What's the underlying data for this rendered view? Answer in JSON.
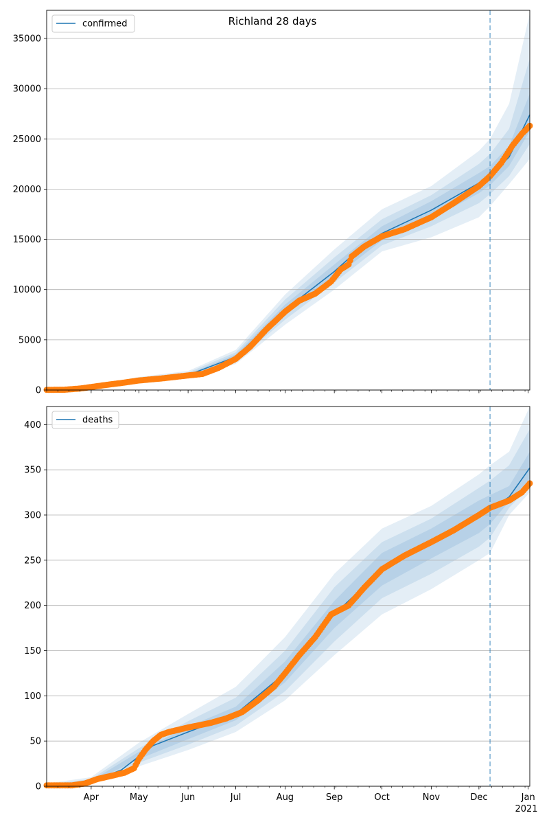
{
  "figure": {
    "title": "Richland 28 days",
    "x_tick_labels": [
      "Apr",
      "May",
      "Jun",
      "Jul",
      "Aug",
      "Sep",
      "Oct",
      "Nov",
      "Dec",
      "Jan"
    ],
    "x_year_label": "2021"
  },
  "colors": {
    "model": "#1f77b4",
    "observed": "#ff7f0e",
    "band": "#1f77b4",
    "grid": "#b0b0b0",
    "forecast_line": "#1f77b4"
  },
  "chart_data": [
    {
      "type": "line",
      "legend": "confirmed",
      "legend_position": "upper-left",
      "grid": "horizontal",
      "x_range": [
        "2020-03-04",
        "2021-01-02"
      ],
      "forecast_start": "2020-12-08",
      "ylim": [
        0,
        37800
      ],
      "y_ticks": [
        0,
        5000,
        10000,
        15000,
        20000,
        25000,
        30000,
        35000
      ],
      "observed": [
        [
          "2020-03-04",
          20
        ],
        [
          "2020-03-15",
          30
        ],
        [
          "2020-03-25",
          150
        ],
        [
          "2020-04-01",
          300
        ],
        [
          "2020-04-10",
          500
        ],
        [
          "2020-04-20",
          700
        ],
        [
          "2020-05-01",
          950
        ],
        [
          "2020-05-15",
          1150
        ],
        [
          "2020-06-01",
          1450
        ],
        [
          "2020-06-10",
          1600
        ],
        [
          "2020-06-20",
          2200
        ],
        [
          "2020-07-01",
          3100
        ],
        [
          "2020-07-10",
          4300
        ],
        [
          "2020-07-20",
          6000
        ],
        [
          "2020-08-01",
          7800
        ],
        [
          "2020-08-10",
          8900
        ],
        [
          "2020-08-20",
          9600
        ],
        [
          "2020-08-30",
          10800
        ],
        [
          "2020-09-05",
          12000
        ],
        [
          "2020-09-10",
          12500
        ],
        [
          "2020-09-12",
          13300
        ],
        [
          "2020-09-20",
          14300
        ],
        [
          "2020-10-01",
          15300
        ],
        [
          "2020-10-15",
          16000
        ],
        [
          "2020-11-01",
          17200
        ],
        [
          "2020-11-15",
          18600
        ],
        [
          "2020-12-01",
          20300
        ],
        [
          "2020-12-08",
          21300
        ],
        [
          "2020-12-15",
          22600
        ],
        [
          "2020-12-22",
          24300
        ],
        [
          "2020-12-28",
          25500
        ],
        [
          "2021-01-02",
          26300
        ]
      ],
      "model": [
        [
          "2020-03-04",
          20
        ],
        [
          "2020-04-01",
          300
        ],
        [
          "2020-05-01",
          1000
        ],
        [
          "2020-06-01",
          1500
        ],
        [
          "2020-07-01",
          3300
        ],
        [
          "2020-08-01",
          8000
        ],
        [
          "2020-09-01",
          11800
        ],
        [
          "2020-09-20",
          14500
        ],
        [
          "2020-10-01",
          15600
        ],
        [
          "2020-11-01",
          17900
        ],
        [
          "2020-12-01",
          20600
        ],
        [
          "2020-12-08",
          21300
        ],
        [
          "2020-12-20",
          23200
        ],
        [
          "2021-01-02",
          27400
        ]
      ],
      "bands": [
        {
          "x": [
            "2020-03-04",
            "2020-04-01",
            "2020-05-01",
            "2020-06-01",
            "2020-07-01",
            "2020-08-01",
            "2020-09-01",
            "2020-10-01",
            "2020-11-01",
            "2020-12-01",
            "2020-12-08",
            "2020-12-20",
            "2021-01-02"
          ],
          "low": [
            0,
            200,
            750,
            1200,
            2600,
            6500,
            10000,
            13800,
            15200,
            17200,
            18300,
            20500,
            23000
          ],
          "high": [
            60,
            420,
            1300,
            1900,
            4000,
            9500,
            14000,
            18000,
            20300,
            23800,
            25000,
            28500,
            37500
          ]
        },
        {
          "x": [
            "2020-03-04",
            "2020-04-01",
            "2020-05-01",
            "2020-06-01",
            "2020-07-01",
            "2020-08-01",
            "2020-09-01",
            "2020-10-01",
            "2020-11-01",
            "2020-12-01",
            "2020-12-08",
            "2020-12-20",
            "2021-01-02"
          ],
          "low": [
            0,
            240,
            820,
            1300,
            2800,
            7000,
            10700,
            14400,
            16300,
            18600,
            19500,
            21300,
            24500
          ],
          "high": [
            45,
            370,
            1200,
            1750,
            3750,
            9000,
            13200,
            17000,
            19400,
            22500,
            23500,
            26000,
            33000
          ]
        },
        {
          "x": [
            "2020-03-04",
            "2020-04-01",
            "2020-05-01",
            "2020-06-01",
            "2020-07-01",
            "2020-08-01",
            "2020-09-01",
            "2020-10-01",
            "2020-11-01",
            "2020-12-01",
            "2020-12-08",
            "2020-12-20",
            "2021-01-02"
          ],
          "low": [
            5,
            270,
            900,
            1400,
            3000,
            7500,
            11200,
            14900,
            17000,
            19600,
            20400,
            22300,
            25800
          ],
          "high": [
            35,
            330,
            1100,
            1600,
            3550,
            8500,
            12500,
            16300,
            18800,
            21600,
            22300,
            24300,
            29500
          ]
        }
      ]
    },
    {
      "type": "line",
      "legend": "deaths",
      "legend_position": "upper-left",
      "grid": "horizontal",
      "x_range": [
        "2020-03-04",
        "2021-01-02"
      ],
      "forecast_start": "2020-12-08",
      "ylim": [
        0,
        420
      ],
      "y_ticks": [
        0,
        50,
        100,
        150,
        200,
        250,
        300,
        350,
        400
      ],
      "observed": [
        [
          "2020-03-04",
          1
        ],
        [
          "2020-03-20",
          1
        ],
        [
          "2020-03-28",
          3
        ],
        [
          "2020-04-05",
          8
        ],
        [
          "2020-04-15",
          12
        ],
        [
          "2020-04-22",
          15
        ],
        [
          "2020-04-28",
          20
        ],
        [
          "2020-05-01",
          30
        ],
        [
          "2020-05-05",
          40
        ],
        [
          "2020-05-10",
          50
        ],
        [
          "2020-05-15",
          57
        ],
        [
          "2020-05-20",
          60
        ],
        [
          "2020-06-01",
          65
        ],
        [
          "2020-06-15",
          70
        ],
        [
          "2020-06-25",
          75
        ],
        [
          "2020-07-05",
          82
        ],
        [
          "2020-07-15",
          95
        ],
        [
          "2020-07-25",
          110
        ],
        [
          "2020-08-01",
          125
        ],
        [
          "2020-08-10",
          145
        ],
        [
          "2020-08-20",
          165
        ],
        [
          "2020-08-30",
          190
        ],
        [
          "2020-09-10",
          200
        ],
        [
          "2020-09-20",
          220
        ],
        [
          "2020-10-01",
          240
        ],
        [
          "2020-10-15",
          255
        ],
        [
          "2020-11-01",
          270
        ],
        [
          "2020-11-15",
          283
        ],
        [
          "2020-12-01",
          300
        ],
        [
          "2020-12-08",
          308
        ],
        [
          "2020-12-20",
          316
        ],
        [
          "2020-12-28",
          325
        ],
        [
          "2021-01-02",
          335
        ]
      ],
      "model": [
        [
          "2020-03-04",
          1
        ],
        [
          "2020-04-01",
          5
        ],
        [
          "2020-04-20",
          18
        ],
        [
          "2020-05-10",
          45
        ],
        [
          "2020-06-01",
          60
        ],
        [
          "2020-07-01",
          80
        ],
        [
          "2020-08-01",
          125
        ],
        [
          "2020-09-01",
          190
        ],
        [
          "2020-10-01",
          240
        ],
        [
          "2020-11-01",
          270
        ],
        [
          "2020-12-01",
          298
        ],
        [
          "2020-12-08",
          306
        ],
        [
          "2020-12-20",
          320
        ],
        [
          "2021-01-02",
          352
        ]
      ],
      "bands": [
        {
          "x": [
            "2020-03-04",
            "2020-04-01",
            "2020-05-01",
            "2020-06-01",
            "2020-07-01",
            "2020-08-01",
            "2020-09-01",
            "2020-10-01",
            "2020-11-01",
            "2020-12-01",
            "2020-12-08",
            "2020-12-20",
            "2021-01-02"
          ],
          "low": [
            0,
            2,
            22,
            40,
            60,
            95,
            145,
            190,
            218,
            250,
            258,
            300,
            325
          ],
          "high": [
            3,
            10,
            48,
            80,
            110,
            165,
            235,
            285,
            310,
            345,
            355,
            370,
            420
          ]
        },
        {
          "x": [
            "2020-03-04",
            "2020-04-01",
            "2020-05-01",
            "2020-06-01",
            "2020-07-01",
            "2020-08-01",
            "2020-09-01",
            "2020-10-01",
            "2020-11-01",
            "2020-12-01",
            "2020-12-08",
            "2020-12-20",
            "2021-01-02"
          ],
          "low": [
            0,
            3,
            26,
            46,
            67,
            105,
            160,
            208,
            235,
            265,
            275,
            308,
            332
          ],
          "high": [
            2,
            8,
            42,
            72,
            98,
            150,
            220,
            270,
            296,
            330,
            338,
            355,
            395
          ]
        },
        {
          "x": [
            "2020-03-04",
            "2020-04-01",
            "2020-05-01",
            "2020-06-01",
            "2020-07-01",
            "2020-08-01",
            "2020-09-01",
            "2020-10-01",
            "2020-11-01",
            "2020-12-01",
            "2020-12-08",
            "2020-12-20",
            "2021-01-02"
          ],
          "low": [
            1,
            4,
            30,
            52,
            73,
            115,
            175,
            222,
            252,
            280,
            290,
            315,
            340
          ],
          "high": [
            2,
            6,
            38,
            66,
            88,
            138,
            205,
            258,
            285,
            316,
            322,
            332,
            370
          ]
        }
      ]
    }
  ]
}
